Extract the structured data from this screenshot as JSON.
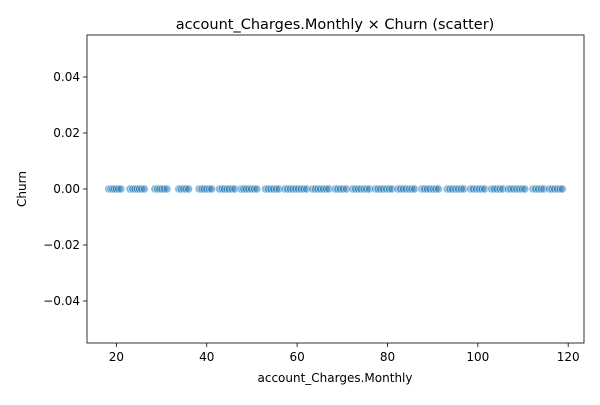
{
  "chart_data": {
    "type": "scatter",
    "title": "account_Charges.Monthly × Churn (scatter)",
    "xlabel": "account_Charges.Monthly",
    "ylabel": "Churn",
    "xlim": [
      13.5,
      123.5
    ],
    "ylim": [
      -0.055,
      0.055
    ],
    "x_ticks": [
      20,
      40,
      60,
      80,
      100,
      120
    ],
    "x_tick_labels": [
      "20",
      "40",
      "60",
      "80",
      "100",
      "120"
    ],
    "y_ticks": [
      -0.04,
      -0.02,
      0.0,
      0.02,
      0.04
    ],
    "y_tick_labels": [
      "−0.04",
      "−0.02",
      "0.00",
      "0.02",
      "0.04"
    ],
    "grid": false,
    "legend": "none",
    "marker_color": "#1f77b4",
    "marker_alpha": 0.5,
    "series": [
      {
        "x": [
          18.3,
          18.8,
          19.2,
          19.6,
          20.0,
          20.5,
          21.0,
          23.0,
          23.6,
          24.1,
          24.6,
          25.1,
          25.6,
          26.2,
          28.5,
          29.1,
          29.6,
          30.1,
          30.6,
          31.2,
          33.8,
          34.3,
          34.9,
          35.4,
          36.0,
          38.3,
          38.9,
          39.4,
          40.0,
          40.6,
          41.1,
          42.8,
          43.4,
          43.9,
          44.5,
          45.0,
          45.6,
          46.2,
          47.6,
          48.2,
          48.7,
          49.3,
          49.9,
          50.5,
          51.1,
          53.0,
          53.6,
          54.2,
          54.8,
          55.4,
          56.0,
          57.3,
          57.9,
          58.5,
          59.1,
          59.7,
          60.3,
          60.9,
          61.5,
          62.1,
          63.4,
          64.0,
          64.6,
          65.2,
          65.8,
          66.4,
          67.0,
          68.4,
          69.0,
          69.6,
          70.2,
          70.9,
          72.3,
          72.9,
          73.5,
          74.1,
          74.8,
          75.4,
          76.0,
          77.3,
          77.9,
          78.5,
          79.1,
          79.8,
          80.4,
          81.0,
          82.3,
          82.9,
          83.5,
          84.1,
          84.8,
          85.4,
          86.0,
          87.6,
          88.2,
          88.8,
          89.4,
          90.1,
          90.7,
          91.3,
          93.2,
          93.8,
          94.4,
          95.1,
          95.7,
          96.3,
          96.9,
          98.4,
          99.0,
          99.7,
          100.3,
          100.9,
          101.5,
          103.0,
          103.6,
          104.2,
          104.9,
          105.5,
          106.7,
          107.3,
          107.9,
          108.6,
          109.2,
          109.8,
          110.4,
          112.2,
          112.8,
          113.4,
          114.0,
          114.6,
          115.8,
          116.4,
          117.0,
          117.6,
          118.2,
          118.7
        ],
        "y": 0.0
      }
    ]
  }
}
